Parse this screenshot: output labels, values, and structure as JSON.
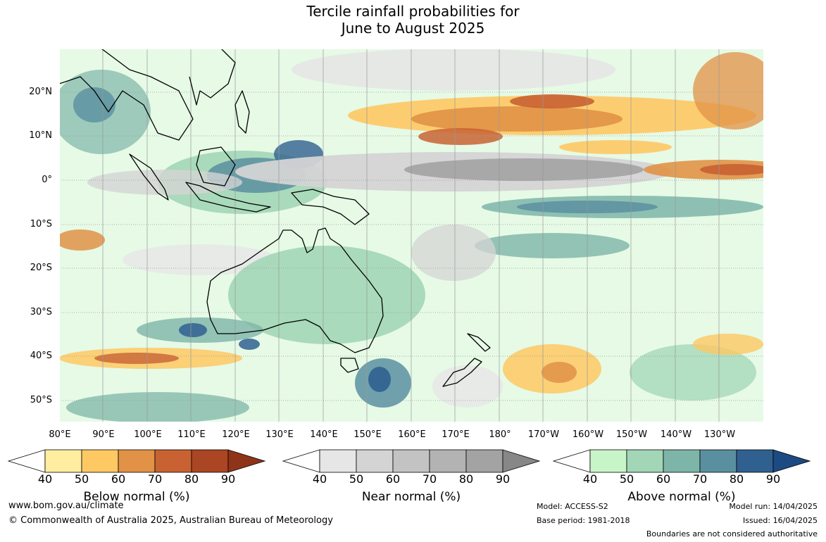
{
  "title_line1": "Tercile rainfall probabilities for",
  "title_line2": "June to August 2025",
  "lat_labels": [
    "20°N",
    "10°N",
    "0°",
    "10°S",
    "20°S",
    "30°S",
    "40°S",
    "50°S"
  ],
  "lon_labels": [
    "80°E",
    "90°E",
    "100°E",
    "110°E",
    "120°E",
    "130°E",
    "140°E",
    "150°E",
    "160°E",
    "170°E",
    "180°",
    "170°W",
    "160°W",
    "150°W",
    "140°W",
    "130°W"
  ],
  "colorbars": [
    {
      "name": "Below normal (%)",
      "ticks": [
        "40",
        "50",
        "60",
        "70",
        "80",
        "90"
      ],
      "colors": [
        "#ffeda0",
        "#fec863",
        "#e19246",
        "#c86232",
        "#aa4623",
        "#8f3418"
      ]
    },
    {
      "name": "Near normal (%)",
      "ticks": [
        "40",
        "50",
        "60",
        "70",
        "80",
        "90"
      ],
      "colors": [
        "#e6e6e6",
        "#d4d4d4",
        "#c3c3c3",
        "#b3b3b3",
        "#a3a3a3",
        "#878787"
      ]
    },
    {
      "name": "Above normal (%)",
      "ticks": [
        "40",
        "50",
        "60",
        "70",
        "80",
        "90"
      ],
      "colors": [
        "#c8f5c8",
        "#a2d6b6",
        "#7db5a8",
        "#5a8fa0",
        "#306090",
        "#1c4a82"
      ]
    }
  ],
  "footer": {
    "url": "www.bom.gov.au/climate",
    "copyright": "© Commonwealth of Australia 2025, Australian Bureau of Meteorology",
    "model": "Model: ACCESS-S2",
    "base_period": "Base period: 1981-2018",
    "model_run": "Model run: 14/04/2025",
    "issued": "Issued: 16/04/2025",
    "disclaimer": "Boundaries are not considered authoritative"
  }
}
